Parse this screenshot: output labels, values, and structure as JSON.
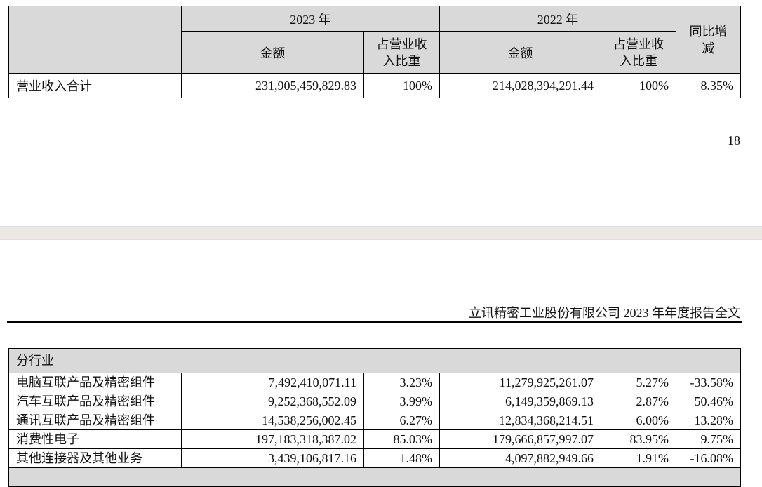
{
  "table1": {
    "header": {
      "year_2023": "2023 年",
      "year_2022": "2022 年",
      "yoy": "同比增减",
      "amount_2023": "金额",
      "share_2023": "占营业收入比重",
      "amount_2022": "金额",
      "share_2022": "占营业收入比重"
    },
    "rows": [
      [
        "营业收入合计",
        "231,905,459,829.83",
        "100%",
        "214,028,394,291.44",
        "100%",
        "8.35%"
      ]
    ]
  },
  "page_number": "18",
  "running_header": "立讯精密工业股份有限公司 2023 年年度报告全文",
  "table2": {
    "section": "分行业",
    "rows": [
      [
        "电脑互联产品及精密组件",
        "7,492,410,071.11",
        "3.23%",
        "11,279,925,261.07",
        "5.27%",
        "-33.58%"
      ],
      [
        "汽车互联产品及精密组件",
        "9,252,368,552.09",
        "3.99%",
        "6,149,359,869.13",
        "2.87%",
        "50.46%"
      ],
      [
        "通讯互联产品及精密组件",
        "14,538,256,002.45",
        "6.27%",
        "12,834,368,214.51",
        "6.00%",
        "13.28%"
      ],
      [
        "消费性电子",
        "197,183,318,387.02",
        "85.03%",
        "179,666,857,997.07",
        "83.95%",
        "9.75%"
      ],
      [
        "其他连接器及其他业务",
        "3,439,106,817.16",
        "1.48%",
        "4,097,882,949.66",
        "1.91%",
        "-16.08%"
      ]
    ]
  }
}
